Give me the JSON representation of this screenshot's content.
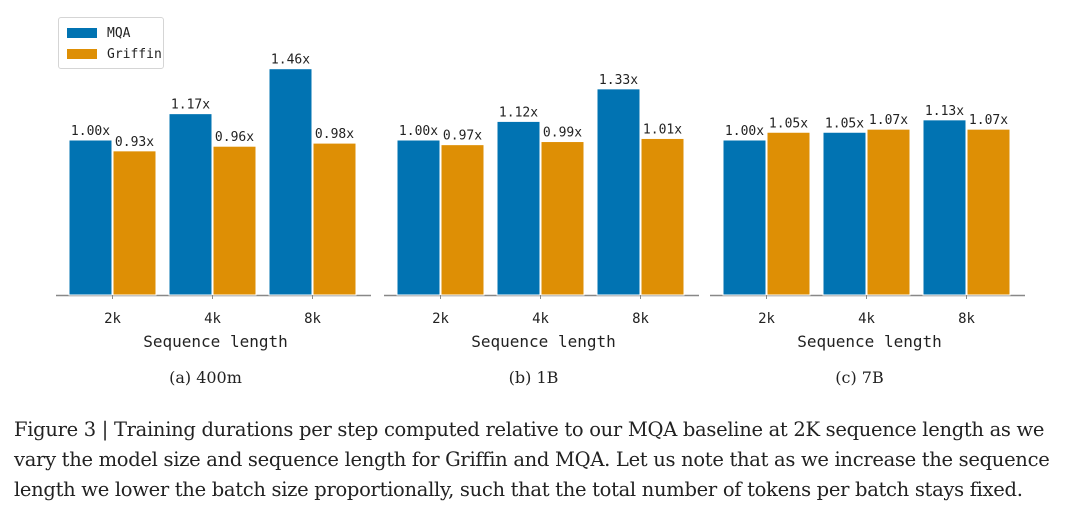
{
  "legend": {
    "items": [
      {
        "label": "MQA",
        "color": "#0173b2"
      },
      {
        "label": "Griffin",
        "color": "#de8f05"
      }
    ]
  },
  "caption": "Figure 3 | Training durations per step computed relative to our MQA baseline at 2K sequence length as we vary the model size and sequence length for Griffin and MQA. Let us note that as we increase the sequence length we lower the batch size proportionally, such that the total number of tokens per batch stays fixed.",
  "chart_data": [
    {
      "type": "bar",
      "title": "(a) 400m",
      "xlabel": "Sequence length",
      "ylabel": "",
      "categories": [
        "2k",
        "4k",
        "8k"
      ],
      "series": [
        {
          "name": "MQA",
          "values": [
            1.0,
            1.17,
            1.46
          ],
          "labels": [
            "1.00x",
            "1.17x",
            "1.46x"
          ]
        },
        {
          "name": "Griffin",
          "values": [
            0.93,
            0.96,
            0.98
          ],
          "labels": [
            "0.93x",
            "0.96x",
            "0.98x"
          ]
        }
      ]
    },
    {
      "type": "bar",
      "title": "(b) 1B",
      "xlabel": "Sequence length",
      "ylabel": "",
      "categories": [
        "2k",
        "4k",
        "8k"
      ],
      "series": [
        {
          "name": "MQA",
          "values": [
            1.0,
            1.12,
            1.33
          ],
          "labels": [
            "1.00x",
            "1.12x",
            "1.33x"
          ]
        },
        {
          "name": "Griffin",
          "values": [
            0.97,
            0.99,
            1.01
          ],
          "labels": [
            "0.97x",
            "0.99x",
            "1.01x"
          ]
        }
      ]
    },
    {
      "type": "bar",
      "title": "(c) 7B",
      "xlabel": "Sequence length",
      "ylabel": "",
      "categories": [
        "2k",
        "4k",
        "8k"
      ],
      "series": [
        {
          "name": "MQA",
          "values": [
            1.0,
            1.05,
            1.13
          ],
          "labels": [
            "1.00x",
            "1.05x",
            "1.13x"
          ]
        },
        {
          "name": "Griffin",
          "values": [
            1.05,
            1.07,
            1.07
          ],
          "labels": [
            "1.05x",
            "1.07x",
            "1.07x"
          ]
        }
      ]
    }
  ]
}
